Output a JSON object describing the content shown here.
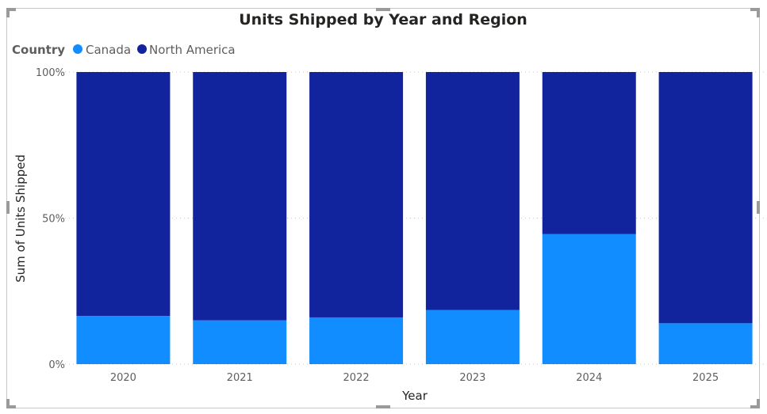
{
  "chart_data": {
    "type": "bar",
    "stacking": "100%",
    "title": "Units Shipped by Year and Region",
    "legend": {
      "title": "Country",
      "position": "top-left",
      "entries": [
        "Canada",
        "North America"
      ]
    },
    "categories": [
      "2020",
      "2021",
      "2022",
      "2023",
      "2024",
      "2025"
    ],
    "series": [
      {
        "name": "Canada",
        "color": "#118dff",
        "values": [
          16.5,
          15,
          16,
          18.5,
          44.5,
          14
        ]
      },
      {
        "name": "North America",
        "color": "#12239e",
        "values": [
          83.5,
          85,
          84,
          81.5,
          55.5,
          86
        ]
      }
    ],
    "xlabel": "Year",
    "ylabel": "Sum of Units Shipped",
    "yticks": [
      "0%",
      "50%",
      "100%"
    ],
    "ylim": [
      0,
      100
    ],
    "grid": true
  }
}
